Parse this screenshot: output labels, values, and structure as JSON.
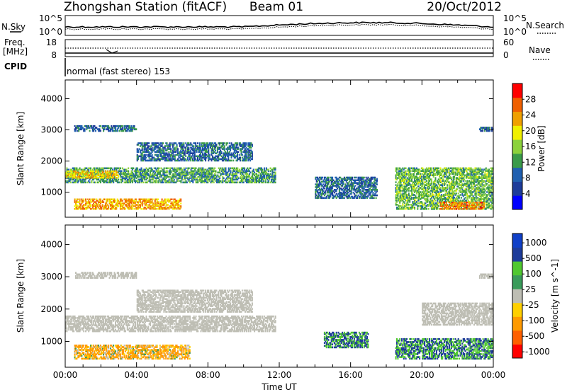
{
  "header": {
    "station": "Zhongshan Station (fitACF)",
    "beam": "Beam 01",
    "date": "20/Oct/2012"
  },
  "top_panel": {
    "left_label": "N.Sky",
    "right_label": "N.Search",
    "left_ticks": [
      "10^5",
      "10^0"
    ],
    "right_ticks": [
      "10^5",
      "10^0"
    ]
  },
  "freq_panel": {
    "left_label_line1": "Freq.",
    "left_label_line2": "[MHz]",
    "left_ticks": [
      "18",
      "8"
    ],
    "right_label": "Nave",
    "right_ticks": [
      "60",
      "0"
    ]
  },
  "cpid": {
    "label": "CPID",
    "mode_text": "normal (fast stereo) 153"
  },
  "colors": {
    "power_scale": [
      "#0000ff",
      "#1e3c9a",
      "#2060b0",
      "#3a9b4a",
      "#8cd23c",
      "#f0f000",
      "#f0a000",
      "#f06000",
      "#ff0000"
    ],
    "velocity_scale": [
      "#ff0000",
      "#ff6000",
      "#ff9a00",
      "#ffd000",
      "#bebeb4",
      "#3a9b5a",
      "#50c830",
      "#1e3c9a",
      "#1040c8"
    ],
    "ground_scatter": "#bebeb4"
  },
  "chart_data": [
    {
      "type": "heatmap",
      "name": "power-panel",
      "ylabel": "Slant Range [km]",
      "ylim": [
        200,
        4600
      ],
      "yticks": [
        "1000",
        "2000",
        "3000",
        "4000"
      ],
      "xlim": [
        0,
        24
      ],
      "colorbar": {
        "label": "Power [dB]",
        "ticks": [
          "4",
          "8",
          "12",
          "16",
          "20",
          "24",
          "28"
        ],
        "range": [
          0,
          32
        ]
      },
      "echo_regions": [
        {
          "t": [
            0.5,
            4.0
          ],
          "r": [
            2950,
            3150
          ],
          "level": 8
        },
        {
          "t": [
            4.0,
            10.5
          ],
          "r": [
            2000,
            2600
          ],
          "level": 8
        },
        {
          "t": [
            0.0,
            11.8
          ],
          "r": [
            1300,
            1800
          ],
          "level": 12
        },
        {
          "t": [
            0.0,
            3.0
          ],
          "r": [
            1450,
            1700
          ],
          "level": 22
        },
        {
          "t": [
            0.5,
            6.5
          ],
          "r": [
            450,
            800
          ],
          "level": 24
        },
        {
          "t": [
            14.0,
            17.5
          ],
          "r": [
            800,
            1500
          ],
          "level": 8
        },
        {
          "t": [
            18.5,
            24.0
          ],
          "r": [
            450,
            1800
          ],
          "level": 14
        },
        {
          "t": [
            21.0,
            23.5
          ],
          "r": [
            450,
            700
          ],
          "level": 26
        },
        {
          "t": [
            23.2,
            24.0
          ],
          "r": [
            2950,
            3100
          ],
          "level": 8
        }
      ]
    },
    {
      "type": "heatmap",
      "name": "velocity-panel",
      "ylabel": "Slant Range [km]",
      "ylim": [
        200,
        4600
      ],
      "yticks": [
        "1000",
        "2000",
        "3000",
        "4000"
      ],
      "xlim": [
        0,
        24
      ],
      "xticks": [
        "00:00",
        "04:00",
        "08:00",
        "12:00",
        "16:00",
        "20:00",
        "00:00"
      ],
      "xlabel": "Time UT",
      "colorbar": {
        "label": "Velocity [m s^-1]",
        "ticks": [
          "1000",
          "500",
          "100",
          "25",
          "-25",
          "-100",
          "-500",
          "-1000"
        ]
      },
      "echo_regions": [
        {
          "t": [
            0.0,
            11.8
          ],
          "r": [
            1300,
            1800
          ],
          "type": "ground"
        },
        {
          "t": [
            0.5,
            4.0
          ],
          "r": [
            2950,
            3150
          ],
          "type": "ground"
        },
        {
          "t": [
            4.0,
            10.5
          ],
          "r": [
            1900,
            2600
          ],
          "type": "ground"
        },
        {
          "t": [
            0.5,
            7.0
          ],
          "r": [
            450,
            900
          ],
          "velocity": -100
        },
        {
          "t": [
            14.5,
            17.0
          ],
          "r": [
            800,
            1300
          ],
          "velocity": 300
        },
        {
          "t": [
            18.5,
            24.0
          ],
          "r": [
            450,
            1100
          ],
          "velocity": 300
        },
        {
          "t": [
            20.0,
            24.0
          ],
          "r": [
            1500,
            2200
          ],
          "type": "ground"
        },
        {
          "t": [
            23.2,
            24.0
          ],
          "r": [
            2950,
            3100
          ],
          "type": "ground"
        }
      ]
    }
  ]
}
